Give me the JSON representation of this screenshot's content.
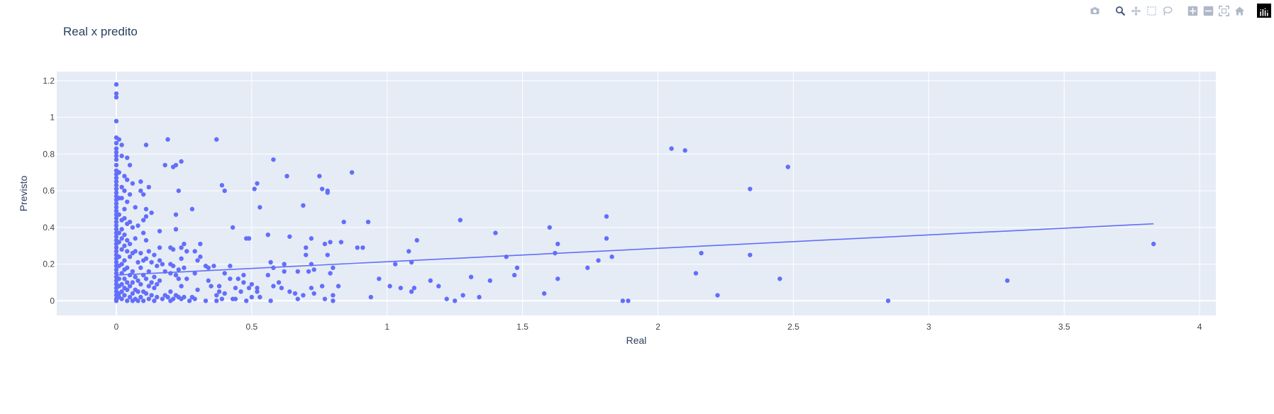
{
  "modebar": {
    "buttons": [
      {
        "name": "camera-icon",
        "group": 0,
        "color": "#b0b8c8"
      },
      {
        "name": "zoom-icon",
        "group": 1,
        "color": "#445577"
      },
      {
        "name": "pan-icon",
        "group": 1,
        "color": "#b0b8c8"
      },
      {
        "name": "box-select-icon",
        "group": 1,
        "color": "#b0b8c8"
      },
      {
        "name": "lasso-select-icon",
        "group": 1,
        "color": "#b0b8c8"
      },
      {
        "name": "zoom-in-icon",
        "group": 2,
        "color": "#b0b8c8"
      },
      {
        "name": "zoom-out-icon",
        "group": 2,
        "color": "#b0b8c8"
      },
      {
        "name": "autoscale-icon",
        "group": 2,
        "color": "#b0b8c8"
      },
      {
        "name": "reset-axes-icon",
        "group": 2,
        "color": "#b0b8c8"
      },
      {
        "name": "plotly-logo-icon",
        "group": 3,
        "color": "#000000"
      }
    ]
  },
  "colors": {
    "plot_bg": "#e5ecf6",
    "grid": "#ffffff",
    "marker": "#636efa",
    "text": "#444444",
    "title": "#2a3f5f"
  },
  "chart_data": {
    "type": "scatter",
    "title": "Real x predito",
    "xlabel": "Real",
    "ylabel": "Previsto",
    "xlim": [
      -0.22,
      4.06
    ],
    "ylim": [
      -0.08,
      1.25
    ],
    "xticks": [
      "0",
      "0.5",
      "1",
      "1.5",
      "2",
      "2.5",
      "3",
      "3.5",
      "4"
    ],
    "yticks": [
      "0",
      "0.2",
      "0.4",
      "0.6",
      "0.8",
      "1",
      "1.2"
    ],
    "grid": true,
    "legend": "none",
    "trendline": {
      "x": [
        0.0,
        3.83
      ],
      "y": [
        0.14,
        0.42
      ]
    },
    "points": [
      [
        0,
        1.18
      ],
      [
        0,
        1.13
      ],
      [
        0,
        1.11
      ],
      [
        0,
        0.98
      ],
      [
        0,
        0.89
      ],
      [
        0,
        0.86
      ],
      [
        0,
        0.83
      ],
      [
        0,
        0.81
      ],
      [
        0,
        0.79
      ],
      [
        0,
        0.77
      ],
      [
        0,
        0.74
      ],
      [
        0,
        0.71
      ],
      [
        0,
        0.69
      ],
      [
        0,
        0.67
      ],
      [
        0,
        0.65
      ],
      [
        0,
        0.63
      ],
      [
        0,
        0.61
      ],
      [
        0,
        0.59
      ],
      [
        0,
        0.57
      ],
      [
        0,
        0.55
      ],
      [
        0,
        0.53
      ],
      [
        0,
        0.51
      ],
      [
        0,
        0.49
      ],
      [
        0,
        0.47
      ],
      [
        0,
        0.45
      ],
      [
        0,
        0.43
      ],
      [
        0,
        0.41
      ],
      [
        0,
        0.39
      ],
      [
        0,
        0.37
      ],
      [
        0,
        0.35
      ],
      [
        0,
        0.33
      ],
      [
        0,
        0.31
      ],
      [
        0,
        0.29
      ],
      [
        0,
        0.27
      ],
      [
        0,
        0.25
      ],
      [
        0,
        0.23
      ],
      [
        0,
        0.21
      ],
      [
        0,
        0.19
      ],
      [
        0,
        0.17
      ],
      [
        0,
        0.15
      ],
      [
        0,
        0.13
      ],
      [
        0,
        0.11
      ],
      [
        0,
        0.09
      ],
      [
        0,
        0.07
      ],
      [
        0,
        0.05
      ],
      [
        0,
        0.03
      ],
      [
        0,
        0.01
      ],
      [
        0,
        0.0
      ],
      [
        0.01,
        0.88
      ],
      [
        0.01,
        0.7
      ],
      [
        0.01,
        0.56
      ],
      [
        0.01,
        0.47
      ],
      [
        0.01,
        0.37
      ],
      [
        0.01,
        0.32
      ],
      [
        0.01,
        0.24
      ],
      [
        0.01,
        0.19
      ],
      [
        0.01,
        0.12
      ],
      [
        0.01,
        0.08
      ],
      [
        0.01,
        0.04
      ],
      [
        0.01,
        0.02
      ],
      [
        0.02,
        0.85
      ],
      [
        0.02,
        0.79
      ],
      [
        0.02,
        0.62
      ],
      [
        0.02,
        0.56
      ],
      [
        0.02,
        0.44
      ],
      [
        0.02,
        0.39
      ],
      [
        0.02,
        0.34
      ],
      [
        0.02,
        0.28
      ],
      [
        0.02,
        0.2
      ],
      [
        0.02,
        0.15
      ],
      [
        0.02,
        0.09
      ],
      [
        0.02,
        0.05
      ],
      [
        0.02,
        0.01
      ],
      [
        0.03,
        0.68
      ],
      [
        0.03,
        0.6
      ],
      [
        0.03,
        0.5
      ],
      [
        0.03,
        0.45
      ],
      [
        0.03,
        0.36
      ],
      [
        0.03,
        0.3
      ],
      [
        0.03,
        0.22
      ],
      [
        0.03,
        0.17
      ],
      [
        0.03,
        0.12
      ],
      [
        0.03,
        0.07
      ],
      [
        0.03,
        0.03
      ],
      [
        0.04,
        0.78
      ],
      [
        0.04,
        0.66
      ],
      [
        0.04,
        0.54
      ],
      [
        0.04,
        0.42
      ],
      [
        0.04,
        0.33
      ],
      [
        0.04,
        0.27
      ],
      [
        0.04,
        0.18
      ],
      [
        0.04,
        0.1
      ],
      [
        0.04,
        0.06
      ],
      [
        0.04,
        0.0
      ],
      [
        0.05,
        0.74
      ],
      [
        0.05,
        0.58
      ],
      [
        0.05,
        0.43
      ],
      [
        0.05,
        0.31
      ],
      [
        0.05,
        0.24
      ],
      [
        0.05,
        0.14
      ],
      [
        0.05,
        0.08
      ],
      [
        0.05,
        0.02
      ],
      [
        0.06,
        0.64
      ],
      [
        0.06,
        0.4
      ],
      [
        0.06,
        0.26
      ],
      [
        0.06,
        0.16
      ],
      [
        0.06,
        0.1
      ],
      [
        0.06,
        0.04
      ],
      [
        0.06,
        0.0
      ],
      [
        0.07,
        0.51
      ],
      [
        0.07,
        0.34
      ],
      [
        0.07,
        0.27
      ],
      [
        0.07,
        0.13
      ],
      [
        0.07,
        0.06
      ],
      [
        0.07,
        0.01
      ],
      [
        0.08,
        0.41
      ],
      [
        0.08,
        0.21
      ],
      [
        0.08,
        0.11
      ],
      [
        0.08,
        0.05
      ],
      [
        0.08,
        0.0
      ],
      [
        0.09,
        0.65
      ],
      [
        0.09,
        0.6
      ],
      [
        0.09,
        0.26
      ],
      [
        0.09,
        0.18
      ],
      [
        0.09,
        0.09
      ],
      [
        0.09,
        0.02
      ],
      [
        0.1,
        0.58
      ],
      [
        0.1,
        0.44
      ],
      [
        0.1,
        0.37
      ],
      [
        0.1,
        0.22
      ],
      [
        0.1,
        0.14
      ],
      [
        0.1,
        0.05
      ],
      [
        0.1,
        0.0
      ],
      [
        0.11,
        0.85
      ],
      [
        0.11,
        0.5
      ],
      [
        0.11,
        0.46
      ],
      [
        0.11,
        0.33
      ],
      [
        0.11,
        0.23
      ],
      [
        0.11,
        0.12
      ],
      [
        0.11,
        0.04
      ],
      [
        0.12,
        0.62
      ],
      [
        0.12,
        0.27
      ],
      [
        0.12,
        0.16
      ],
      [
        0.12,
        0.08
      ],
      [
        0.12,
        0.01
      ],
      [
        0.13,
        0.48
      ],
      [
        0.13,
        0.21
      ],
      [
        0.13,
        0.1
      ],
      [
        0.13,
        0.03
      ],
      [
        0.14,
        0.25
      ],
      [
        0.14,
        0.13
      ],
      [
        0.14,
        0.07
      ],
      [
        0.14,
        0.0
      ],
      [
        0.15,
        0.19
      ],
      [
        0.15,
        0.09
      ],
      [
        0.15,
        0.02
      ],
      [
        0.16,
        0.38
      ],
      [
        0.16,
        0.29
      ],
      [
        0.16,
        0.22
      ],
      [
        0.16,
        0.11
      ],
      [
        0.17,
        0.2
      ],
      [
        0.17,
        0.01
      ],
      [
        0.18,
        0.74
      ],
      [
        0.18,
        0.16
      ],
      [
        0.18,
        0.03
      ],
      [
        0.19,
        0.88
      ],
      [
        0.19,
        0.02
      ],
      [
        0.2,
        0.29
      ],
      [
        0.2,
        0.2
      ],
      [
        0.2,
        0.15
      ],
      [
        0.2,
        0.05
      ],
      [
        0.2,
        0.0
      ],
      [
        0.21,
        0.73
      ],
      [
        0.21,
        0.28
      ],
      [
        0.21,
        0.19
      ],
      [
        0.21,
        0.01
      ],
      [
        0.22,
        0.74
      ],
      [
        0.22,
        0.47
      ],
      [
        0.22,
        0.39
      ],
      [
        0.22,
        0.14
      ],
      [
        0.22,
        0.03
      ],
      [
        0.23,
        0.6
      ],
      [
        0.23,
        0.17
      ],
      [
        0.23,
        0.12
      ],
      [
        0.23,
        0.02
      ],
      [
        0.24,
        0.76
      ],
      [
        0.24,
        0.29
      ],
      [
        0.24,
        0.23
      ],
      [
        0.24,
        0.08
      ],
      [
        0.24,
        0.01
      ],
      [
        0.25,
        0.31
      ],
      [
        0.25,
        0.18
      ],
      [
        0.25,
        0.02
      ],
      [
        0.26,
        0.27
      ],
      [
        0.26,
        0.12
      ],
      [
        0.27,
        0.0
      ],
      [
        0.28,
        0.02
      ],
      [
        0.28,
        0.5
      ],
      [
        0.29,
        0.27
      ],
      [
        0.29,
        0.15
      ],
      [
        0.29,
        0.01
      ],
      [
        0.3,
        0.22
      ],
      [
        0.3,
        0.06
      ],
      [
        0.31,
        0.31
      ],
      [
        0.31,
        0.24
      ],
      [
        0.33,
        0.0
      ],
      [
        0.33,
        0.19
      ],
      [
        0.34,
        0.18
      ],
      [
        0.34,
        0.11
      ],
      [
        0.35,
        0.08
      ],
      [
        0.36,
        0.19
      ],
      [
        0.37,
        0.88
      ],
      [
        0.37,
        0.03
      ],
      [
        0.37,
        0.0
      ],
      [
        0.38,
        0.08
      ],
      [
        0.38,
        0.05
      ],
      [
        0.39,
        0.63
      ],
      [
        0.39,
        0.01
      ],
      [
        0.4,
        0.6
      ],
      [
        0.4,
        0.04
      ],
      [
        0.4,
        0.15
      ],
      [
        0.42,
        0.12
      ],
      [
        0.42,
        0.19
      ],
      [
        0.43,
        0.4
      ],
      [
        0.43,
        0.01
      ],
      [
        0.44,
        0.07
      ],
      [
        0.44,
        0.01
      ],
      [
        0.45,
        0.12
      ],
      [
        0.46,
        0.05
      ],
      [
        0.47,
        0.14
      ],
      [
        0.47,
        0.1
      ],
      [
        0.48,
        0.34
      ],
      [
        0.48,
        0.0
      ],
      [
        0.49,
        0.34
      ],
      [
        0.49,
        0.07
      ],
      [
        0.5,
        0.09
      ],
      [
        0.5,
        0.02
      ],
      [
        0.51,
        0.61
      ],
      [
        0.52,
        0.64
      ],
      [
        0.52,
        0.07
      ],
      [
        0.52,
        0.05
      ],
      [
        0.53,
        0.51
      ],
      [
        0.53,
        0.02
      ],
      [
        0.56,
        0.14
      ],
      [
        0.56,
        0.36
      ],
      [
        0.57,
        0.21
      ],
      [
        0.57,
        0.0
      ],
      [
        0.58,
        0.18
      ],
      [
        0.58,
        0.77
      ],
      [
        0.58,
        0.08
      ],
      [
        0.6,
        0.1
      ],
      [
        0.61,
        0.07
      ],
      [
        0.62,
        0.16
      ],
      [
        0.62,
        0.2
      ],
      [
        0.63,
        0.68
      ],
      [
        0.64,
        0.35
      ],
      [
        0.64,
        0.05
      ],
      [
        0.66,
        0.04
      ],
      [
        0.67,
        0.16
      ],
      [
        0.67,
        0.01
      ],
      [
        0.69,
        0.52
      ],
      [
        0.69,
        0.03
      ],
      [
        0.7,
        0.29
      ],
      [
        0.7,
        0.25
      ],
      [
        0.71,
        0.16
      ],
      [
        0.72,
        0.34
      ],
      [
        0.72,
        0.07
      ],
      [
        0.72,
        0.2
      ],
      [
        0.73,
        0.17
      ],
      [
        0.73,
        0.04
      ],
      [
        0.75,
        0.68
      ],
      [
        0.76,
        0.61
      ],
      [
        0.76,
        0.08
      ],
      [
        0.77,
        0.31
      ],
      [
        0.77,
        0.01
      ],
      [
        0.78,
        0.59
      ],
      [
        0.78,
        0.6
      ],
      [
        0.78,
        0.25
      ],
      [
        0.79,
        0.32
      ],
      [
        0.79,
        0.15
      ],
      [
        0.8,
        0.18
      ],
      [
        0.8,
        0.0
      ],
      [
        0.8,
        0.03
      ],
      [
        0.82,
        0.08
      ],
      [
        0.83,
        0.32
      ],
      [
        0.84,
        0.43
      ],
      [
        0.87,
        0.7
      ],
      [
        0.89,
        0.29
      ],
      [
        0.91,
        0.29
      ],
      [
        0.93,
        0.43
      ],
      [
        0.94,
        0.02
      ],
      [
        0.97,
        0.12
      ],
      [
        1.01,
        0.08
      ],
      [
        1.03,
        0.2
      ],
      [
        1.05,
        0.07
      ],
      [
        1.08,
        0.27
      ],
      [
        1.09,
        0.21
      ],
      [
        1.09,
        0.05
      ],
      [
        1.1,
        0.07
      ],
      [
        1.11,
        0.33
      ],
      [
        1.16,
        0.11
      ],
      [
        1.19,
        0.08
      ],
      [
        1.22,
        0.01
      ],
      [
        1.25,
        0.0
      ],
      [
        1.27,
        0.44
      ],
      [
        1.28,
        0.03
      ],
      [
        1.31,
        0.13
      ],
      [
        1.34,
        0.02
      ],
      [
        1.38,
        0.11
      ],
      [
        1.4,
        0.37
      ],
      [
        1.44,
        0.24
      ],
      [
        1.47,
        0.14
      ],
      [
        1.48,
        0.18
      ],
      [
        1.58,
        0.04
      ],
      [
        1.6,
        0.4
      ],
      [
        1.62,
        0.26
      ],
      [
        1.63,
        0.31
      ],
      [
        1.63,
        0.12
      ],
      [
        1.74,
        0.18
      ],
      [
        1.78,
        0.22
      ],
      [
        1.81,
        0.46
      ],
      [
        1.81,
        0.34
      ],
      [
        1.83,
        0.24
      ],
      [
        1.87,
        0.0
      ],
      [
        1.89,
        0.0
      ],
      [
        2.05,
        0.83
      ],
      [
        2.1,
        0.82
      ],
      [
        2.14,
        0.15
      ],
      [
        2.16,
        0.26
      ],
      [
        2.22,
        0.03
      ],
      [
        2.34,
        0.61
      ],
      [
        2.34,
        0.25
      ],
      [
        2.45,
        0.12
      ],
      [
        2.48,
        0.73
      ],
      [
        2.85,
        0.0
      ],
      [
        3.29,
        0.11
      ],
      [
        3.83,
        0.31
      ]
    ]
  }
}
